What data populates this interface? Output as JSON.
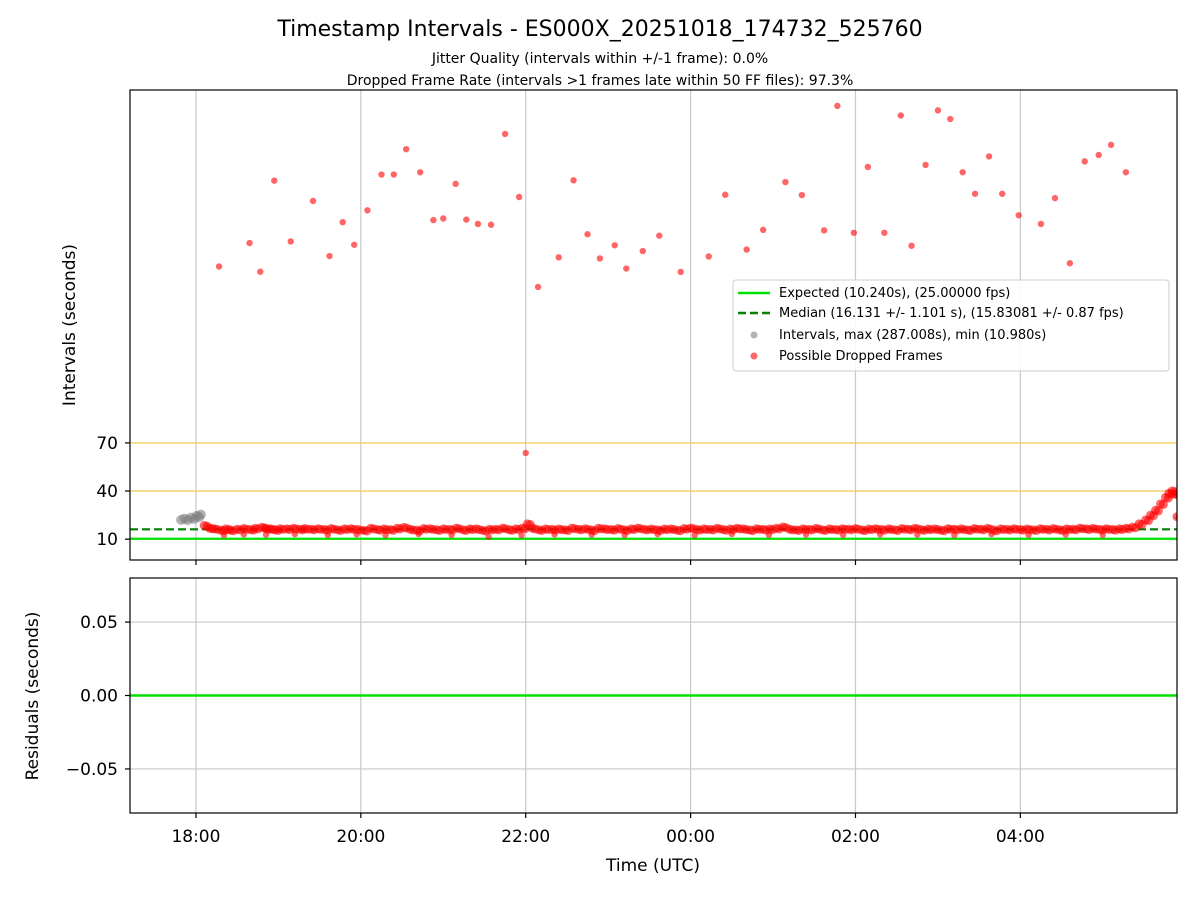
{
  "chart_data": {
    "type": "scatter",
    "title": "Timestamp Intervals - ES000X_20251018_174732_525760",
    "subtitles": [
      "Jitter Quality (intervals within +/-1 frame): 0.0%",
      "Dropped Frame Rate (intervals >1 frames late within 50 FF files): 97.3%"
    ],
    "xlabel": "Time (UTC)",
    "x_unit": "hours since 18:00 UTC",
    "xlim": [
      -0.8,
      11.9
    ],
    "xticks": [
      {
        "value": 0,
        "label": "18:00"
      },
      {
        "value": 2,
        "label": "20:00"
      },
      {
        "value": 4,
        "label": "22:00"
      },
      {
        "value": 6,
        "label": "00:00"
      },
      {
        "value": 8,
        "label": "02:00"
      },
      {
        "value": 10,
        "label": "04:00"
      }
    ],
    "top_panel": {
      "ylabel": "Intervals (seconds)",
      "ylim": [
        -3,
        290
      ],
      "yticks": [
        {
          "value": 10,
          "label": "10"
        },
        {
          "value": 40,
          "label": "40"
        },
        {
          "value": 70,
          "label": "70"
        }
      ],
      "threshold_lines": [
        40,
        70
      ],
      "threshold_color": "#f5c542",
      "expected": {
        "value": 10.24,
        "color": "#00e000",
        "label": "Expected (10.240s), (25.00000 fps)"
      },
      "median": {
        "value": 16.131,
        "color": "#008000",
        "label": "Median (16.131 +/- 1.101 s), (15.83081 +/- 0.87 fps)"
      },
      "intervals_legend": "Intervals, max (287.008s), min (10.980s)",
      "dropped_legend": "Possible Dropped Frames",
      "interval_color": "#808080",
      "dropped_color": "#ff0000",
      "intervals_points": [
        [
          -0.18,
          22.0
        ],
        [
          -0.14,
          22.8
        ],
        [
          -0.1,
          21.9
        ],
        [
          -0.06,
          23.4
        ],
        [
          -0.02,
          22.6
        ],
        [
          0.01,
          24.5
        ],
        [
          0.04,
          23.8
        ],
        [
          0.06,
          25.3
        ]
      ],
      "dropped_points": [
        [
          0.28,
          180.0
        ],
        [
          0.65,
          194.6
        ],
        [
          0.78,
          176.7
        ],
        [
          0.95,
          233.5
        ],
        [
          1.15,
          195.6
        ],
        [
          1.42,
          220.8
        ],
        [
          1.62,
          186.5
        ],
        [
          1.78,
          207.6
        ],
        [
          1.92,
          193.5
        ],
        [
          2.08,
          215.0
        ],
        [
          2.25,
          237.3
        ],
        [
          2.4,
          237.3
        ],
        [
          2.55,
          253.1
        ],
        [
          2.72,
          238.7
        ],
        [
          2.88,
          208.9
        ],
        [
          3.0,
          209.9
        ],
        [
          3.15,
          231.5
        ],
        [
          3.28,
          209.2
        ],
        [
          3.42,
          206.5
        ],
        [
          3.58,
          206.0
        ],
        [
          3.75,
          262.6
        ],
        [
          3.92,
          223.3
        ],
        [
          4.0,
          63.7
        ],
        [
          4.15,
          167.2
        ],
        [
          4.4,
          185.7
        ],
        [
          4.58,
          233.7
        ],
        [
          4.75,
          200.1
        ],
        [
          4.9,
          185.0
        ],
        [
          5.08,
          193.2
        ],
        [
          5.22,
          178.7
        ],
        [
          5.42,
          189.6
        ],
        [
          5.62,
          199.2
        ],
        [
          5.88,
          176.6
        ],
        [
          6.22,
          186.2
        ],
        [
          6.42,
          224.7
        ],
        [
          6.68,
          190.5
        ],
        [
          6.88,
          202.8
        ],
        [
          7.15,
          232.6
        ],
        [
          7.35,
          224.5
        ],
        [
          7.62,
          202.5
        ],
        [
          7.78,
          280.1
        ],
        [
          7.98,
          201.0
        ],
        [
          8.15,
          242.0
        ],
        [
          8.35,
          201.0
        ],
        [
          8.55,
          274.1
        ],
        [
          8.68,
          192.9
        ],
        [
          8.85,
          243.3
        ],
        [
          9.0,
          277.3
        ],
        [
          9.15,
          271.9
        ],
        [
          9.3,
          238.7
        ],
        [
          9.45,
          225.3
        ],
        [
          9.62,
          248.6
        ],
        [
          9.78,
          225.3
        ],
        [
          9.98,
          211.9
        ],
        [
          10.25,
          206.5
        ],
        [
          10.42,
          222.6
        ],
        [
          10.6,
          182.0
        ],
        [
          10.78,
          245.5
        ],
        [
          10.95,
          249.5
        ],
        [
          11.1,
          255.8
        ],
        [
          11.28,
          238.7
        ]
      ],
      "dropped_band": [
        [
          0.1,
          18.5
        ],
        [
          0.16,
          16.9
        ],
        [
          0.22,
          16.5
        ],
        [
          0.3,
          15.6
        ],
        [
          0.36,
          16.4
        ],
        [
          0.42,
          15.6
        ],
        [
          0.5,
          16.2
        ],
        [
          0.58,
          16.6
        ],
        [
          0.66,
          16.0
        ],
        [
          0.72,
          16.8
        ],
        [
          0.8,
          17.4
        ],
        [
          0.85,
          16.5
        ],
        [
          0.9,
          16.5
        ],
        [
          0.96,
          15.8
        ],
        [
          1.02,
          16.5
        ],
        [
          1.1,
          16.4
        ],
        [
          1.18,
          16.8
        ],
        [
          1.26,
          16.2
        ],
        [
          1.32,
          16.6
        ],
        [
          1.4,
          16.2
        ],
        [
          1.48,
          16.5
        ],
        [
          1.56,
          16.0
        ],
        [
          1.64,
          16.6
        ],
        [
          1.72,
          15.8
        ],
        [
          1.8,
          16.4
        ],
        [
          1.88,
          16.5
        ],
        [
          1.96,
          16.0
        ],
        [
          2.04,
          15.5
        ],
        [
          2.12,
          16.8
        ],
        [
          2.2,
          16.0
        ],
        [
          2.28,
          16.3
        ],
        [
          2.36,
          15.9
        ],
        [
          2.44,
          16.8
        ],
        [
          2.52,
          17.3
        ],
        [
          2.6,
          16.1
        ],
        [
          2.68,
          15.6
        ],
        [
          2.76,
          16.6
        ],
        [
          2.84,
          16.5
        ],
        [
          2.92,
          15.8
        ],
        [
          3.0,
          16.4
        ],
        [
          3.08,
          16.1
        ],
        [
          3.16,
          16.9
        ],
        [
          3.24,
          15.8
        ],
        [
          3.32,
          16.4
        ],
        [
          3.4,
          16.4
        ],
        [
          3.48,
          15.5
        ],
        [
          3.56,
          16.2
        ],
        [
          3.64,
          16.2
        ],
        [
          3.72,
          16.9
        ],
        [
          3.8,
          15.9
        ],
        [
          3.88,
          16.4
        ],
        [
          3.96,
          16.9
        ],
        [
          4.02,
          19.5
        ],
        [
          4.08,
          16.8
        ],
        [
          4.16,
          15.8
        ],
        [
          4.24,
          16.4
        ],
        [
          4.32,
          16.1
        ],
        [
          4.4,
          16.3
        ],
        [
          4.48,
          15.8
        ],
        [
          4.56,
          16.9
        ],
        [
          4.64,
          16.2
        ],
        [
          4.72,
          16.5
        ],
        [
          4.8,
          15.7
        ],
        [
          4.88,
          16.8
        ],
        [
          4.96,
          16.4
        ],
        [
          5.04,
          16.0
        ],
        [
          5.12,
          16.6
        ],
        [
          5.2,
          15.8
        ],
        [
          5.28,
          16.4
        ],
        [
          5.36,
          16.9
        ],
        [
          5.44,
          16.1
        ],
        [
          5.52,
          16.3
        ],
        [
          5.6,
          15.8
        ],
        [
          5.68,
          16.3
        ],
        [
          5.76,
          16.4
        ],
        [
          5.84,
          15.6
        ],
        [
          5.92,
          16.6
        ],
        [
          6.0,
          16.9
        ],
        [
          6.08,
          16.0
        ],
        [
          6.16,
          16.4
        ],
        [
          6.24,
          16.1
        ],
        [
          6.32,
          16.8
        ],
        [
          6.4,
          15.9
        ],
        [
          6.48,
          16.3
        ],
        [
          6.56,
          16.8
        ],
        [
          6.64,
          16.4
        ],
        [
          6.72,
          15.7
        ],
        [
          6.8,
          16.5
        ],
        [
          6.88,
          16.1
        ],
        [
          6.96,
          16.3
        ],
        [
          7.04,
          16.8
        ],
        [
          7.12,
          17.6
        ],
        [
          7.2,
          16.2
        ],
        [
          7.28,
          15.8
        ],
        [
          7.36,
          16.4
        ],
        [
          7.44,
          16.1
        ],
        [
          7.52,
          16.7
        ],
        [
          7.6,
          15.8
        ],
        [
          7.68,
          16.4
        ],
        [
          7.76,
          16.0
        ],
        [
          7.84,
          16.5
        ],
        [
          7.92,
          16.2
        ],
        [
          8.0,
          16.6
        ],
        [
          8.08,
          15.7
        ],
        [
          8.16,
          16.3
        ],
        [
          8.24,
          16.5
        ],
        [
          8.32,
          16.0
        ],
        [
          8.4,
          16.4
        ],
        [
          8.48,
          15.8
        ],
        [
          8.56,
          16.6
        ],
        [
          8.64,
          16.2
        ],
        [
          8.72,
          16.8
        ],
        [
          8.8,
          15.9
        ],
        [
          8.88,
          16.3
        ],
        [
          8.96,
          16.4
        ],
        [
          9.04,
          15.6
        ],
        [
          9.12,
          16.5
        ],
        [
          9.2,
          16.2
        ],
        [
          9.28,
          16.4
        ],
        [
          9.36,
          15.8
        ],
        [
          9.44,
          16.6
        ],
        [
          9.52,
          16.2
        ],
        [
          9.6,
          16.7
        ],
        [
          9.68,
          15.6
        ],
        [
          9.76,
          16.4
        ],
        [
          9.84,
          16.1
        ],
        [
          9.92,
          16.5
        ],
        [
          10.0,
          16.0
        ],
        [
          10.08,
          16.3
        ],
        [
          10.16,
          15.8
        ],
        [
          10.24,
          16.5
        ],
        [
          10.32,
          16.1
        ],
        [
          10.4,
          16.6
        ],
        [
          10.48,
          15.8
        ],
        [
          10.56,
          16.4
        ],
        [
          10.64,
          16.2
        ],
        [
          10.72,
          16.9
        ],
        [
          10.8,
          16.4
        ],
        [
          10.88,
          16.7
        ],
        [
          10.96,
          16.1
        ],
        [
          11.04,
          16.5
        ],
        [
          11.12,
          16.0
        ],
        [
          11.2,
          16.4
        ],
        [
          11.28,
          16.8
        ],
        [
          11.36,
          17.5
        ],
        [
          11.44,
          19.5
        ],
        [
          11.52,
          22.0
        ],
        [
          11.58,
          25.0
        ],
        [
          11.64,
          28.0
        ],
        [
          11.7,
          32.0
        ],
        [
          11.76,
          36.0
        ],
        [
          11.8,
          38.5
        ],
        [
          11.84,
          40.0
        ],
        [
          11.88,
          38.0
        ],
        [
          11.9,
          24.0
        ]
      ],
      "dropped_scatter_low": [
        [
          0.34,
          12.5
        ],
        [
          0.58,
          13.0
        ],
        [
          0.85,
          12.8
        ],
        [
          1.2,
          13.1
        ],
        [
          1.6,
          12.6
        ],
        [
          1.95,
          13.0
        ],
        [
          2.3,
          12.5
        ],
        [
          2.7,
          13.2
        ],
        [
          3.1,
          12.7
        ],
        [
          3.55,
          11.5
        ],
        [
          3.95,
          12.4
        ],
        [
          4.35,
          13.0
        ],
        [
          4.8,
          12.8
        ],
        [
          5.2,
          12.6
        ],
        [
          5.6,
          13.1
        ],
        [
          6.05,
          12.5
        ],
        [
          6.5,
          13.2
        ],
        [
          6.95,
          12.7
        ],
        [
          7.4,
          12.9
        ],
        [
          7.85,
          12.6
        ],
        [
          8.3,
          13.0
        ],
        [
          8.75,
          12.8
        ],
        [
          9.2,
          12.5
        ],
        [
          9.65,
          13.1
        ],
        [
          10.1,
          12.7
        ],
        [
          10.55,
          12.9
        ],
        [
          11.0,
          12.6
        ]
      ]
    },
    "bottom_panel": {
      "ylabel": "Residuals (seconds)",
      "ylim": [
        -0.08,
        0.08
      ],
      "yticks": [
        {
          "value": -0.05,
          "label": "−0.05"
        },
        {
          "value": 0.0,
          "label": "0.00"
        },
        {
          "value": 0.05,
          "label": "0.05"
        }
      ],
      "residual_line": 0.0,
      "line_color": "#00e000"
    }
  }
}
